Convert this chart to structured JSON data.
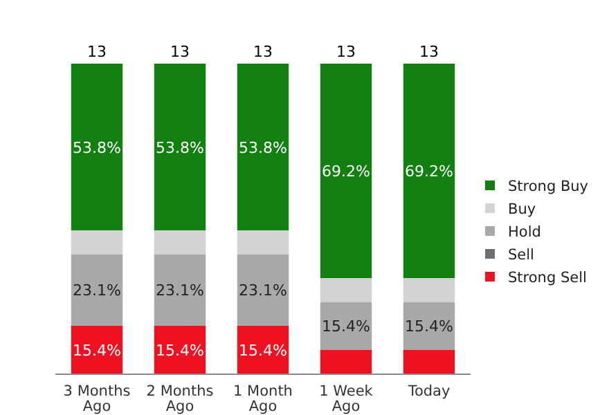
{
  "chart_data": {
    "type": "bar",
    "stacked": true,
    "categories": [
      "3 Months Ago",
      "2 Months Ago",
      "1 Month Ago",
      "1 Week Ago",
      "Today"
    ],
    "series": [
      {
        "name": "Strong Sell",
        "color": "#ee1122",
        "values": [
          15.4,
          15.4,
          15.4,
          7.7,
          7.7
        ],
        "value_labels": [
          "15.4%",
          "15.4%",
          "15.4%",
          null,
          null
        ]
      },
      {
        "name": "Sell",
        "color": "#707070",
        "values": [
          0,
          0,
          0,
          0,
          0
        ],
        "value_labels": [
          null,
          null,
          null,
          null,
          null
        ]
      },
      {
        "name": "Hold",
        "color": "#a9a9a9",
        "values": [
          23.1,
          23.1,
          23.1,
          15.4,
          15.4
        ],
        "value_labels": [
          "23.1%",
          "23.1%",
          "23.1%",
          "15.4%",
          "15.4%"
        ]
      },
      {
        "name": "Buy",
        "color": "#d3d3d3",
        "values": [
          7.7,
          7.7,
          7.7,
          7.7,
          7.7
        ],
        "value_labels": [
          null,
          null,
          null,
          null,
          null
        ]
      },
      {
        "name": "Strong Buy",
        "color": "#118011",
        "values": [
          53.8,
          53.8,
          53.8,
          69.2,
          69.2
        ],
        "value_labels": [
          "53.8%",
          "53.8%",
          "53.8%",
          "69.2%",
          "69.2%"
        ]
      }
    ],
    "annotations": [
      {
        "text": "13",
        "x": "3 Months Ago",
        "y": 100
      },
      {
        "text": "13",
        "x": "2 Months Ago",
        "y": 100
      },
      {
        "text": "13",
        "x": "1 Month Ago",
        "y": 100
      },
      {
        "text": "13",
        "x": "1 Week Ago",
        "y": 100
      },
      {
        "text": "13",
        "x": "Today",
        "y": 100
      }
    ],
    "legend": "right"
  }
}
